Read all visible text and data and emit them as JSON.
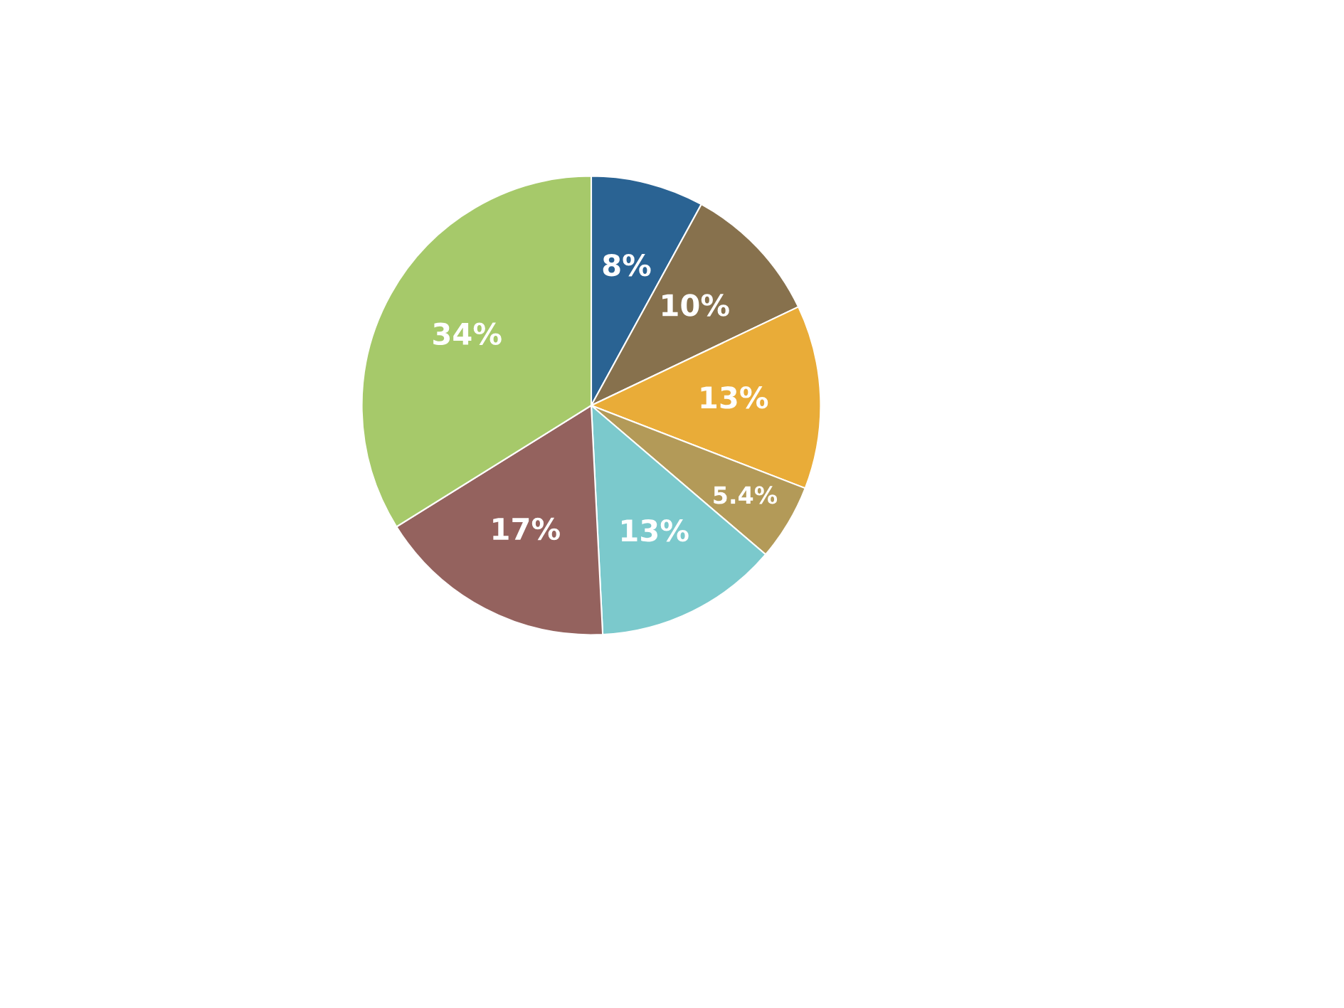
{
  "chart_data": {
    "type": "pie",
    "categories": [
      null,
      null,
      null,
      null,
      null,
      null,
      null
    ],
    "values": [
      8,
      10,
      13,
      5.4,
      13,
      17,
      34
    ],
    "value_labels": [
      "8%",
      "10%",
      "13%",
      "5.4%",
      "13%",
      "17%",
      "34%"
    ],
    "colors": [
      "#2a6393",
      "#87714d",
      "#e9ac38",
      "#b39a58",
      "#7bc9cc",
      "#94625e",
      "#a6c96a"
    ]
  }
}
